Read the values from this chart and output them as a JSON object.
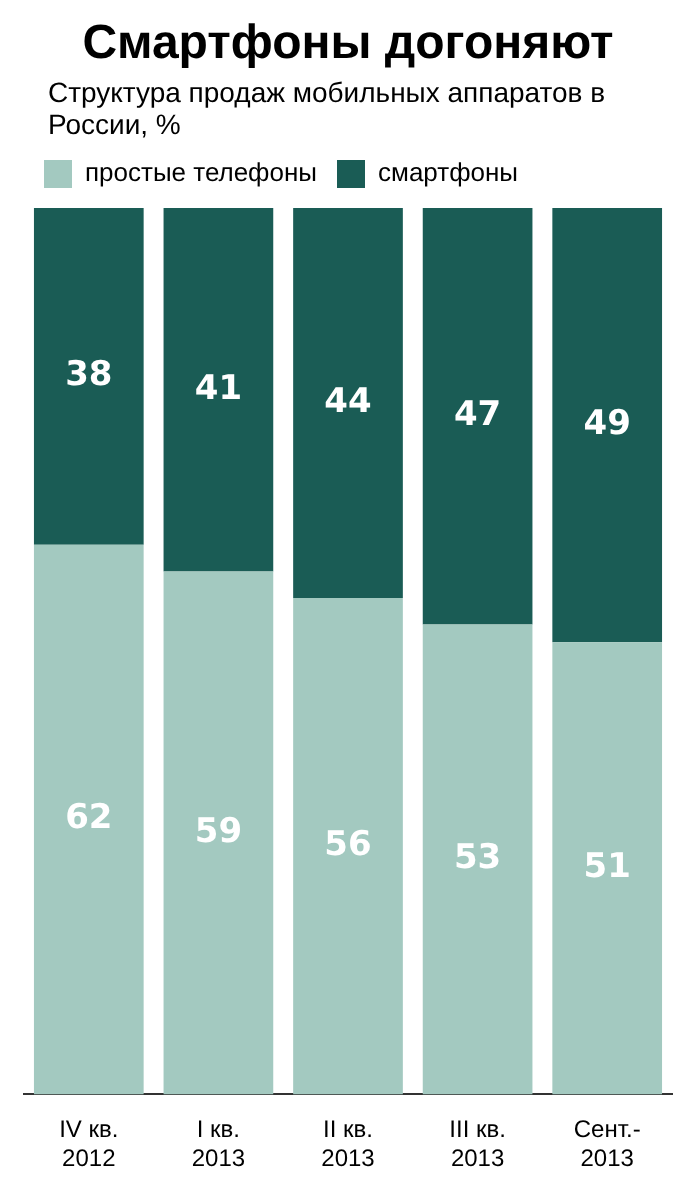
{
  "chart_data": {
    "type": "bar",
    "title": "Смартфоны догоняют",
    "subtitle": "Структура продаж мобильных аппаратов в России, %",
    "categories": [
      "IV кв.\n2012",
      "I кв.\n2013",
      "II кв.\n2013",
      "III кв.\n2013",
      "Сент.-\n2013"
    ],
    "series": [
      {
        "name": "простые телефоны",
        "color": "#a3c9c0",
        "values": [
          62,
          59,
          56,
          53,
          51
        ]
      },
      {
        "name": "смартфоны",
        "color": "#1a5c55",
        "values": [
          38,
          41,
          44,
          47,
          49
        ]
      }
    ],
    "stacked": true,
    "ylim": [
      0,
      100
    ],
    "tick_labels": "x",
    "data_labels": true,
    "legend": "top left",
    "grid": false
  }
}
